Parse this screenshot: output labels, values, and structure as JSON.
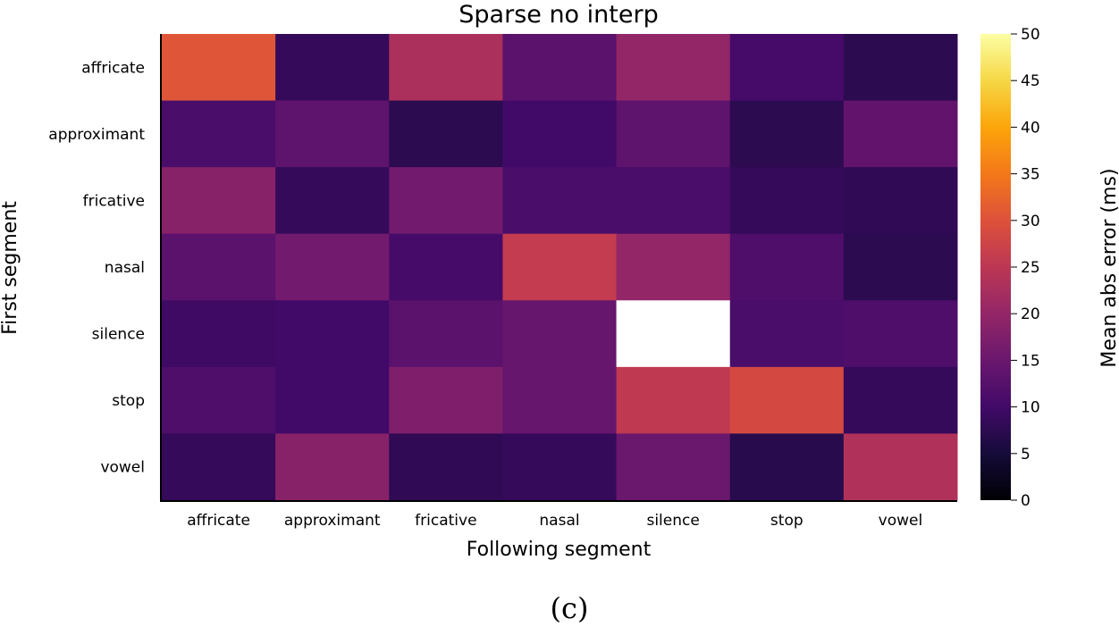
{
  "chart_data": {
    "type": "heatmap",
    "title": "Sparse no interp",
    "xlabel": "Following segment",
    "ylabel": "First segment",
    "x_categories": [
      "affricate",
      "approximant",
      "fricative",
      "nasal",
      "silence",
      "stop",
      "vowel"
    ],
    "y_categories": [
      "affricate",
      "approximant",
      "fricative",
      "nasal",
      "silence",
      "stop",
      "vowel"
    ],
    "values": [
      [
        30.5,
        8.5,
        23,
        13,
        20,
        10.5,
        7.5
      ],
      [
        11,
        13.5,
        7.5,
        10,
        13.5,
        7.5,
        14
      ],
      [
        18.5,
        8.5,
        16,
        11,
        11,
        8.5,
        8
      ],
      [
        13,
        16,
        10.5,
        26,
        20,
        11.5,
        7.5
      ],
      [
        9.5,
        10,
        13,
        14.5,
        null,
        11,
        11.5
      ],
      [
        11.5,
        10,
        17.5,
        14.5,
        25.5,
        28.5,
        8.5
      ],
      [
        8.5,
        18.5,
        8,
        8.5,
        15,
        7,
        23.5
      ]
    ],
    "colormap": "inferno",
    "missing_color": "#ffffff",
    "colorbar": {
      "label": "Mean abs error (ms)",
      "range": [
        0,
        50
      ],
      "ticks": [
        "0",
        "5",
        "10",
        "15",
        "20",
        "25",
        "30",
        "35",
        "40",
        "45",
        "50"
      ]
    },
    "grid": false
  },
  "caption": "(c)"
}
